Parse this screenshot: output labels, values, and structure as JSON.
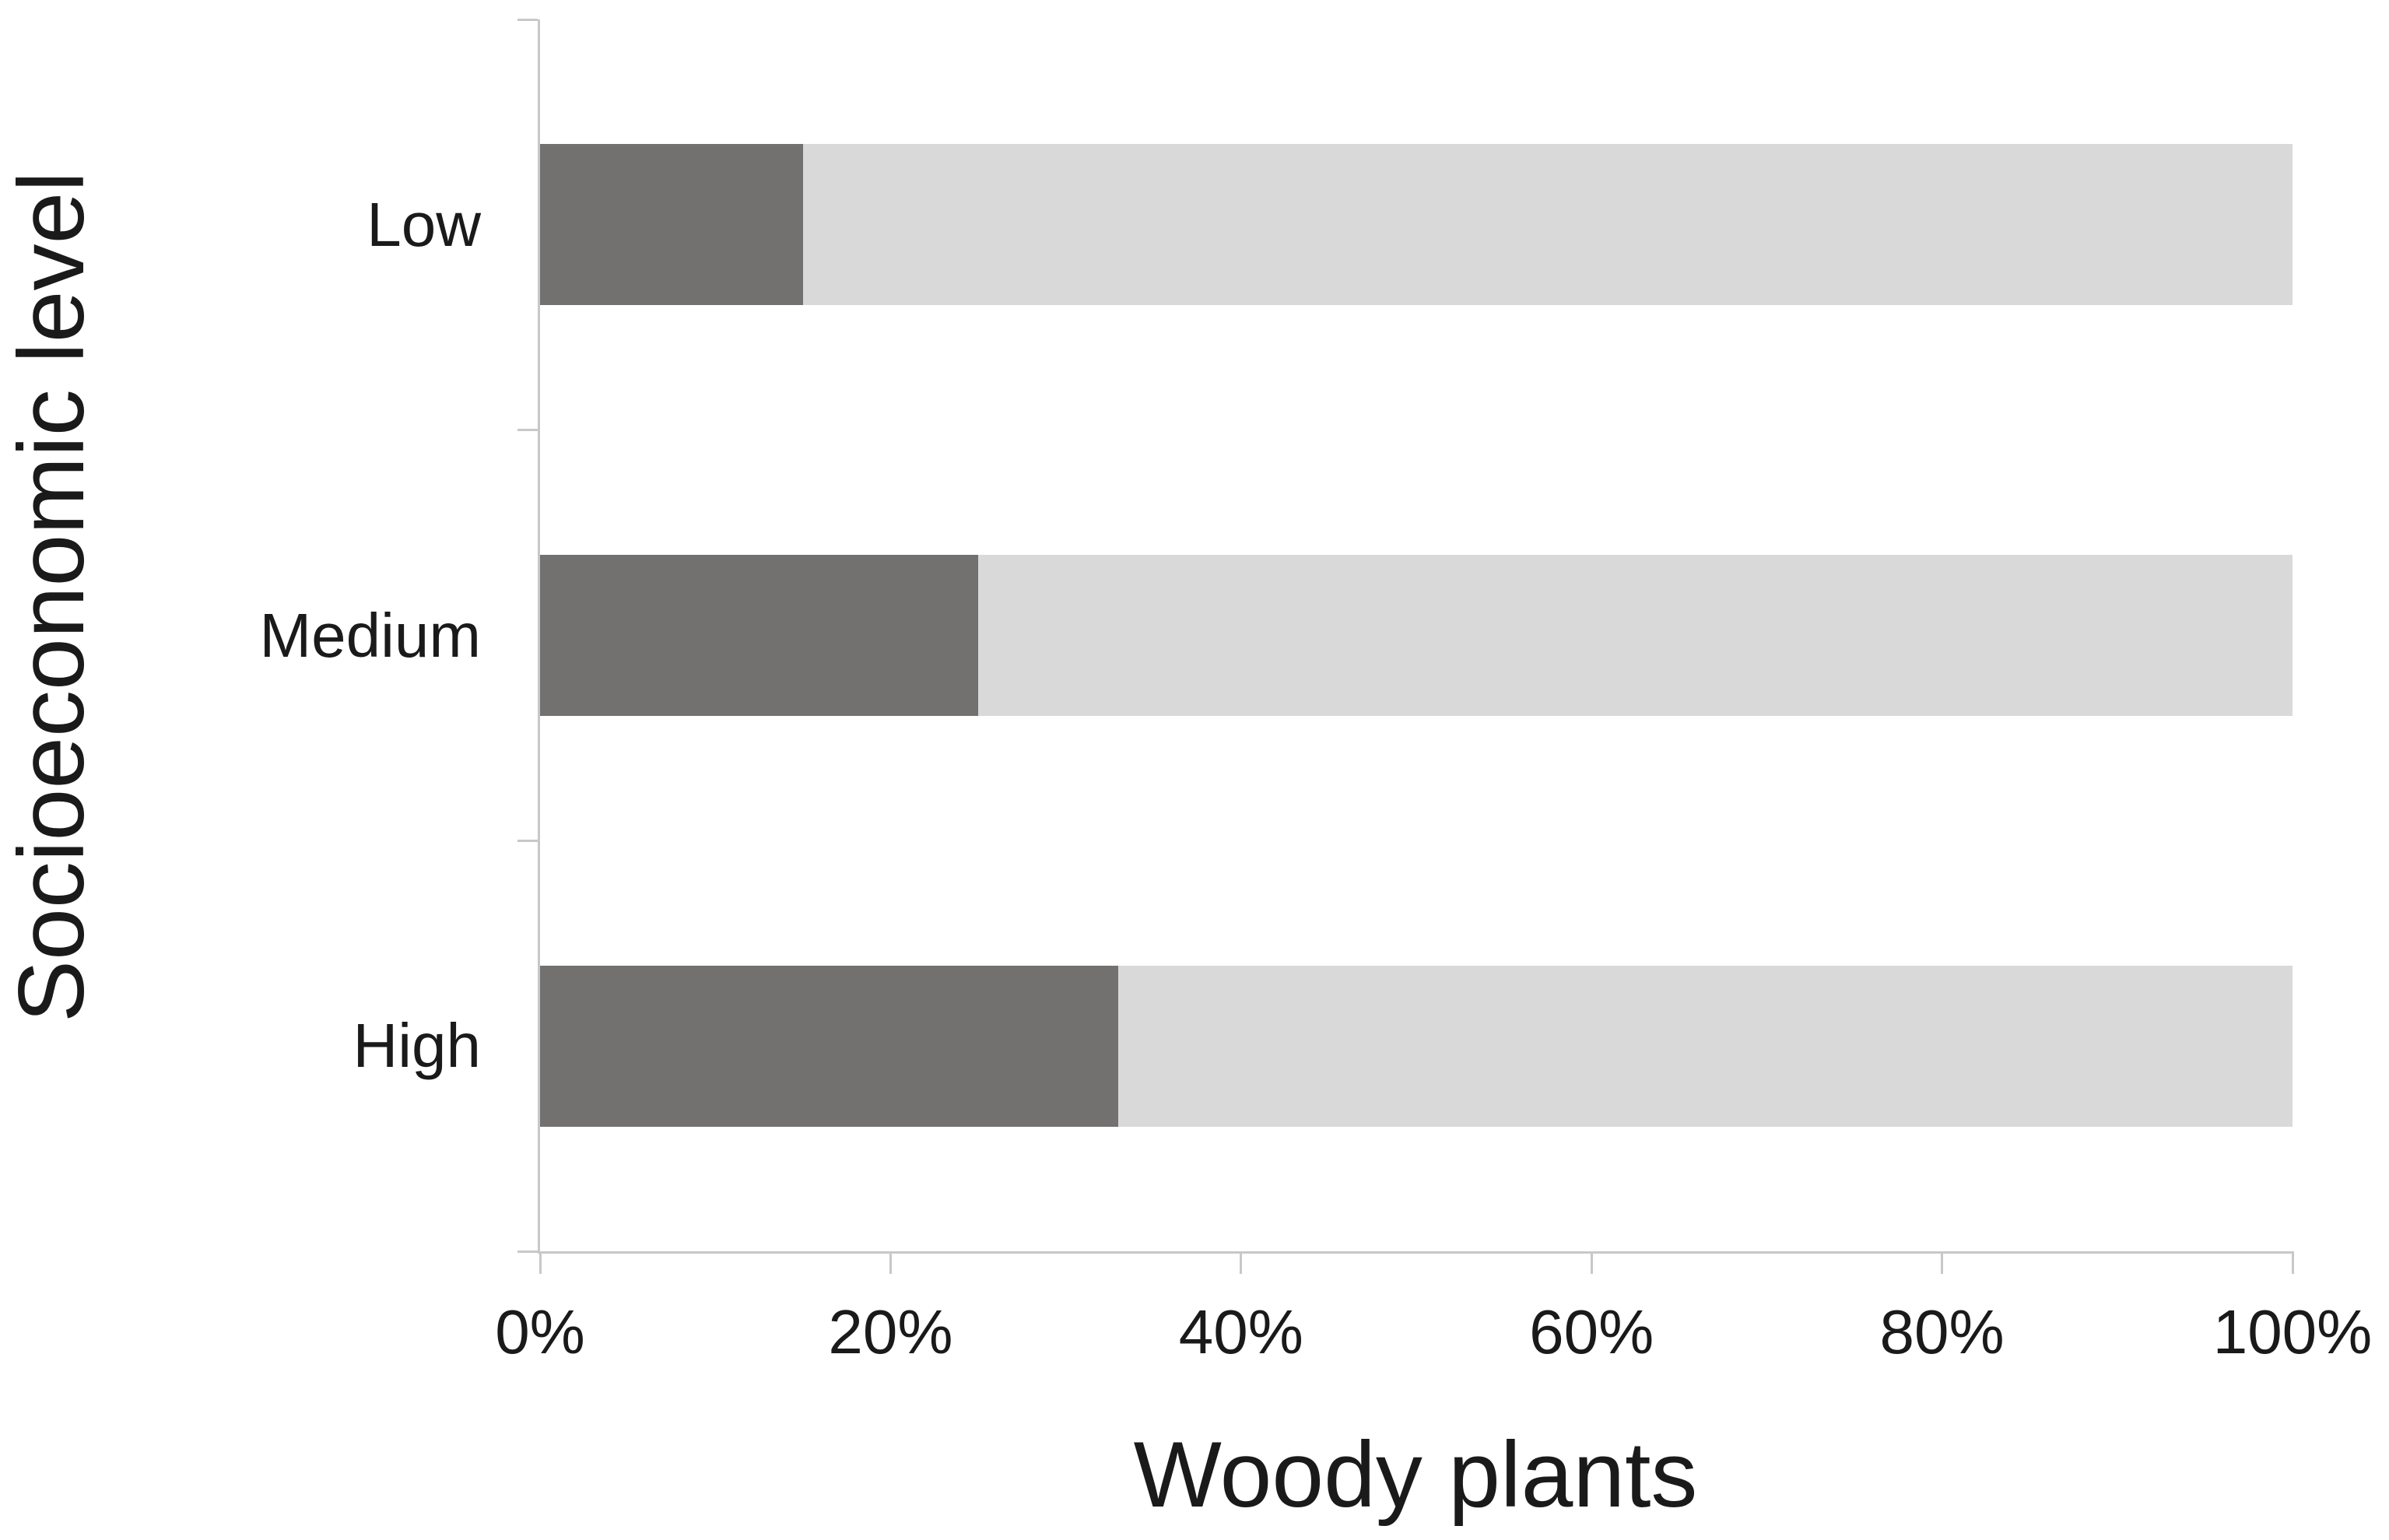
{
  "figure": {
    "background": "#ffffff"
  },
  "chart_data": {
    "type": "bar",
    "orientation": "horizontal",
    "stacked": true,
    "title": "",
    "xlabel": "Woody plants",
    "ylabel": "Socioeconomic level",
    "categories": [
      "Low",
      "Medium",
      "High"
    ],
    "series": [
      {
        "name": "dark gray segment",
        "color": "#737070",
        "values": [
          15,
          25,
          33
        ]
      },
      {
        "name": "light gray segment",
        "color": "#d9d9d9",
        "values": [
          85,
          75,
          67
        ]
      }
    ],
    "xlim": [
      0,
      100
    ],
    "x_tick_values": [
      0,
      20,
      40,
      60,
      80,
      100
    ],
    "x_tick_labels": [
      "0%",
      "20%",
      "40%",
      "60%",
      "80%",
      "100%"
    ],
    "grid": false,
    "legend": false,
    "colors": {
      "axis": "#c8c8c8",
      "text": "#1a1a1a",
      "background": "#ffffff"
    }
  }
}
